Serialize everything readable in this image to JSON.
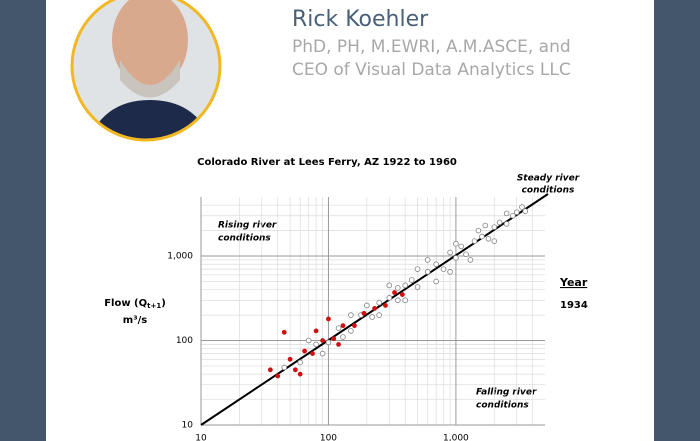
{
  "header": {
    "name": "Rick Koehler",
    "credentials": [
      "PhD, PH, M.EWRI, A.M.ASCE, and",
      "CEO of Visual Data Analytics LLC"
    ]
  },
  "chart_data": {
    "type": "scatter",
    "title": "Colorado River at Lees Ferry, AZ 1922 to 1960",
    "y_label": [
      "Flow (Q",
      "t+1",
      ")",
      "m³/s"
    ],
    "annotations": {
      "steady": [
        "Steady river",
        "conditions"
      ],
      "rising": [
        "Rising river",
        "conditions"
      ],
      "falling": [
        "Falling river",
        "conditions"
      ]
    },
    "year_label": "Year",
    "year": "1934",
    "log_x": true,
    "log_y": true,
    "grid": true,
    "xlim": [
      10,
      5000
    ],
    "ylim": [
      10,
      5000
    ],
    "xticks": [
      10,
      100,
      {
        "value": 1000,
        "label": "1,000"
      }
    ],
    "yticks": [
      10,
      100,
      {
        "value": 1000,
        "label": "1,000"
      }
    ],
    "xminor": [
      20,
      30,
      40,
      50,
      60,
      70,
      80,
      90,
      200,
      300,
      400,
      500,
      600,
      700,
      800,
      900,
      2000,
      3000,
      4000
    ],
    "yminor": [
      20,
      30,
      40,
      50,
      60,
      70,
      80,
      90,
      200,
      300,
      400,
      500,
      600,
      700,
      800,
      900,
      2000,
      3000,
      4000
    ],
    "series": [
      {
        "color": "#808080",
        "x": [
          45,
          60,
          80,
          100,
          120,
          150,
          180,
          200,
          220,
          250,
          300,
          350,
          400,
          450,
          500,
          600,
          700,
          800,
          900,
          1000,
          1100,
          1200,
          1400,
          1600,
          1800,
          2000,
          2200,
          2500,
          2800,
          3000,
          3500,
          3300,
          700,
          500,
          1500,
          2000,
          300,
          400,
          1000,
          1300,
          250,
          150,
          90,
          70,
          600,
          900,
          2500,
          1700,
          130,
          350
        ],
        "values": [
          48,
          55,
          90,
          95,
          140,
          130,
          200,
          260,
          190,
          280,
          320,
          300,
          450,
          520,
          430,
          650,
          800,
          700,
          1100,
          950,
          1300,
          1050,
          1500,
          1700,
          1600,
          2200,
          2500,
          2400,
          3000,
          3300,
          3400,
          3800,
          500,
          700,
          2000,
          1500,
          450,
          300,
          1400,
          900,
          200,
          200,
          70,
          100,
          900,
          650,
          3200,
          2300,
          110,
          420
        ]
      },
      {
        "color": "#d01010",
        "x": [
          35,
          40,
          50,
          55,
          65,
          75,
          90,
          110,
          130,
          160,
          190,
          230,
          280,
          330,
          380,
          45,
          80,
          100,
          60,
          120
        ],
        "values": [
          45,
          38,
          60,
          45,
          75,
          70,
          100,
          105,
          150,
          150,
          210,
          240,
          260,
          370,
          350,
          125,
          130,
          180,
          40,
          90
        ]
      }
    ]
  }
}
